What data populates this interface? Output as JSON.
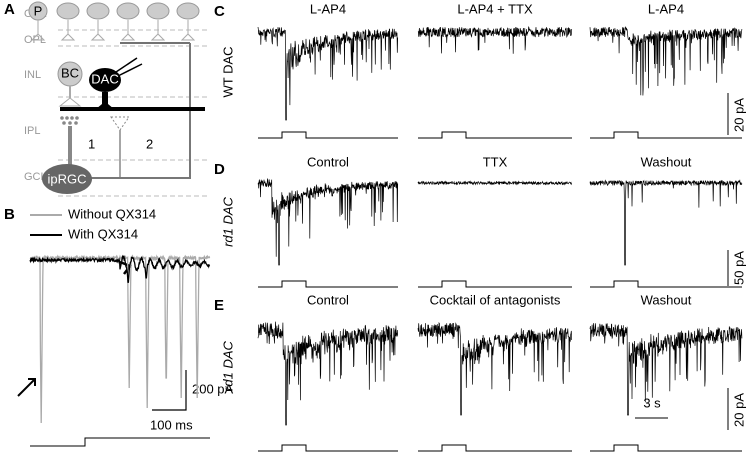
{
  "panels": {
    "a": {
      "label": "A",
      "layers": [
        "ONL",
        "OPL",
        "INL",
        "IPL",
        "GCL"
      ],
      "cells": {
        "photoreceptor": "P",
        "bipolar": "BC",
        "amacrine": "DAC",
        "ganglion": "ipRGC"
      },
      "pathways": [
        "1",
        "2"
      ]
    },
    "b": {
      "label": "B",
      "legend": [
        "Without QX314",
        "With QX314"
      ],
      "scale_bars": [
        "200 pA",
        "100 ms"
      ]
    },
    "c": {
      "label": "C",
      "row_label": "WT DAC",
      "conditions": [
        "L-AP4",
        "L-AP4 + TTX",
        "L-AP4"
      ],
      "scale_bars": [
        "20 pA"
      ]
    },
    "d": {
      "label": "D",
      "row_label": "rd1 DAC",
      "conditions": [
        "Control",
        "TTX",
        "Washout"
      ],
      "scale_bars": [
        "50 pA"
      ]
    },
    "e": {
      "label": "E",
      "row_label": "rd1 DAC",
      "conditions": [
        "Control",
        "Cocktail of antagonists",
        "Washout"
      ],
      "scale_bars": [
        "20 pA",
        "3 s"
      ]
    }
  }
}
